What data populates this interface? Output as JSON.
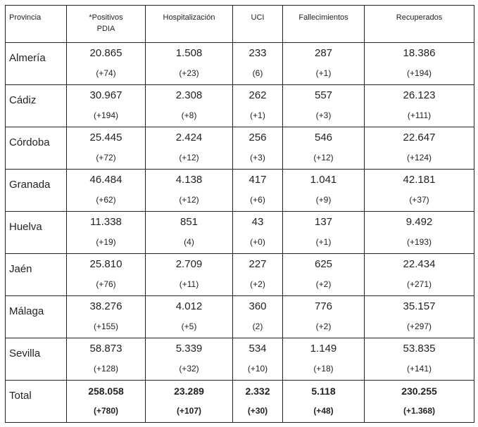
{
  "headers": [
    "Provincia",
    "*Positivos PDIA",
    "Hospitalización",
    "UCI",
    "Fallecimientos",
    "Recuperados"
  ],
  "rows": [
    {
      "provincia": "Almería",
      "cells": [
        [
          "20.865",
          "(+74)"
        ],
        [
          "1.508",
          "(+23)"
        ],
        [
          "233",
          "(6)"
        ],
        [
          "287",
          "(+1)"
        ],
        [
          "18.386",
          "(+194)"
        ]
      ]
    },
    {
      "provincia": "Cádiz",
      "cells": [
        [
          "30.967",
          "(+194)"
        ],
        [
          "2.308",
          "(+8)"
        ],
        [
          "262",
          "(+1)"
        ],
        [
          "557",
          "(+3)"
        ],
        [
          "26.123",
          "(+111)"
        ]
      ]
    },
    {
      "provincia": "Córdoba",
      "cells": [
        [
          "25.445",
          "(+72)"
        ],
        [
          "2.424",
          "(+12)"
        ],
        [
          "256",
          "(+3)"
        ],
        [
          "546",
          "(+12)"
        ],
        [
          "22.647",
          "(+124)"
        ]
      ]
    },
    {
      "provincia": "Granada",
      "cells": [
        [
          "46.484",
          "(+62)"
        ],
        [
          "4.138",
          "(+12)"
        ],
        [
          "417",
          "(+6)"
        ],
        [
          "1.041",
          "(+9)"
        ],
        [
          "42.181",
          "(+37)"
        ]
      ]
    },
    {
      "provincia": "Huelva",
      "cells": [
        [
          "11.338",
          "(+19)"
        ],
        [
          "851",
          "(4)"
        ],
        [
          "43",
          "(+0)"
        ],
        [
          "137",
          "(+1)"
        ],
        [
          "9.492",
          "(+193)"
        ]
      ]
    },
    {
      "provincia": "Jaén",
      "cells": [
        [
          "25.810",
          "(+76)"
        ],
        [
          "2.709",
          "(+11)"
        ],
        [
          "227",
          "(+2)"
        ],
        [
          "625",
          "(+2)"
        ],
        [
          "22.434",
          "(+271)"
        ]
      ]
    },
    {
      "provincia": "Málaga",
      "cells": [
        [
          "38.276",
          "(+155)"
        ],
        [
          "4.012",
          "(+5)"
        ],
        [
          "360",
          "(2)"
        ],
        [
          "776",
          "(+2)"
        ],
        [
          "35.157",
          "(+297)"
        ]
      ]
    },
    {
      "provincia": "Sevilla",
      "cells": [
        [
          "58.873",
          "(+128)"
        ],
        [
          "5.339",
          "(+32)"
        ],
        [
          "534",
          "(+10)"
        ],
        [
          "1.149",
          "(+18)"
        ],
        [
          "53.835",
          "(+141)"
        ]
      ]
    },
    {
      "provincia": "Total",
      "cells": [
        [
          "258.058",
          "(+780)"
        ],
        [
          "23.289",
          "(+107)"
        ],
        [
          "2.332",
          "(+30)"
        ],
        [
          "5.118",
          "(+48)"
        ],
        [
          "230.255",
          "(+1.368)"
        ]
      ]
    }
  ]
}
